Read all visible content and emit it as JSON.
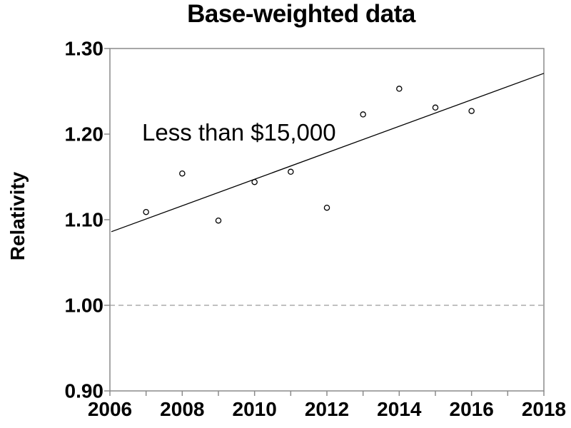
{
  "chart_data": {
    "type": "scatter",
    "title": "Base-weighted data",
    "xlabel": "",
    "ylabel": "Relativity",
    "annotation": "Less than $15,000",
    "x_range": [
      2006,
      2018
    ],
    "y_range": [
      0.9,
      1.3
    ],
    "x_minor_tick_interval": 1,
    "x_major_ticks": [
      2006,
      2008,
      2010,
      2012,
      2014,
      2016,
      2018
    ],
    "x_tick_labels": [
      "2006",
      "2008",
      "2010",
      "2012",
      "2014",
      "2016",
      "2018"
    ],
    "y_ticks": [
      0.9,
      1.0,
      1.1,
      1.2,
      1.3
    ],
    "y_tick_labels": [
      "0.90",
      "1.00",
      "1.10",
      "1.20",
      "1.30"
    ],
    "grid": "off",
    "legend": "none",
    "series": [
      {
        "name": "Less than $15,000",
        "type": "scatter",
        "marker": "open-circle",
        "x": [
          2007,
          2008,
          2009,
          2010,
          2011,
          2012,
          2013,
          2014,
          2015,
          2016
        ],
        "y": [
          1.109,
          1.154,
          1.099,
          1.144,
          1.156,
          1.114,
          1.223,
          1.253,
          1.231,
          1.227
        ]
      },
      {
        "name": "trend-line",
        "type": "line",
        "x": [
          2006,
          2018
        ],
        "y": [
          1.086,
          1.271
        ]
      }
    ],
    "reference_line": {
      "y": 1.0,
      "style": "dashed"
    },
    "colors": {
      "text": "#000000",
      "marker_stroke": "#000000",
      "trend_line": "#000000",
      "axis_frame": "#8a8a8a",
      "reference_line": "#9a9a9a",
      "background": "#ffffff"
    }
  }
}
